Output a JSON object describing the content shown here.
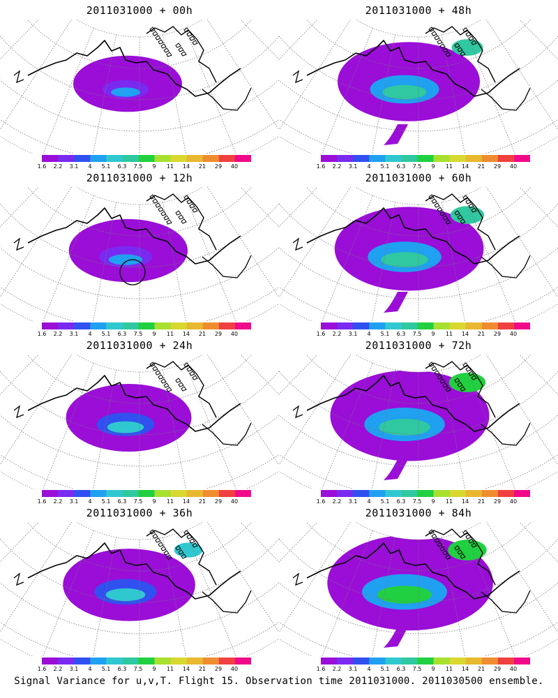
{
  "caption": "Signal Variance for u,v,T. Flight 15. Observation time 2011031000. 2011030500 ensemble.",
  "colorbar": {
    "colors": [
      "#9a0ed8",
      "#7a2af0",
      "#3050f0",
      "#20a0f0",
      "#30c8d0",
      "#30c8a0",
      "#20d040",
      "#a8e030",
      "#d8d830",
      "#e8b830",
      "#f08c30",
      "#f04040",
      "#f00a8a"
    ],
    "labels": [
      "1.6",
      "2.2",
      "3.1",
      "4",
      "5.1",
      "6.3",
      "7.5",
      "9",
      "11",
      "14",
      "21",
      "29",
      "40"
    ]
  },
  "panels": [
    {
      "title": "2011031000 + 00h",
      "intensity": 0.0
    },
    {
      "title": "2011031000 + 48h",
      "intensity": 0.5
    },
    {
      "title": "2011031000 + 12h",
      "intensity": 0.15
    },
    {
      "title": "2011031000 + 60h",
      "intensity": 0.6
    },
    {
      "title": "2011031000 + 24h",
      "intensity": 0.25
    },
    {
      "title": "2011031000 + 72h",
      "intensity": 0.75
    },
    {
      "title": "2011031000 + 36h",
      "intensity": 0.35
    },
    {
      "title": "2011031000 + 84h",
      "intensity": 0.85
    }
  ]
}
